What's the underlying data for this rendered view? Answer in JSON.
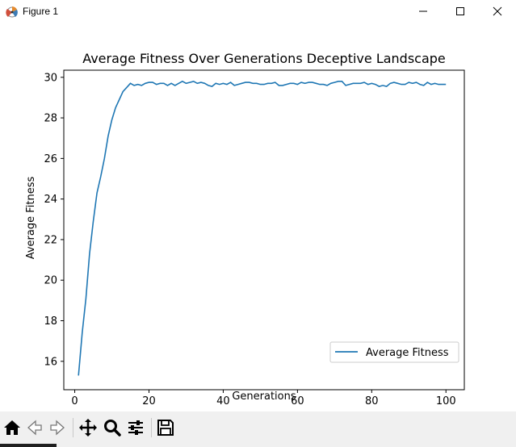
{
  "window": {
    "title": "Figure 1",
    "icons": [
      "matplotlib-icon",
      "minimize-icon",
      "maximize-icon",
      "close-icon"
    ]
  },
  "toolbar": {
    "buttons": [
      {
        "name": "home-button",
        "icon": "home-icon"
      },
      {
        "name": "back-button",
        "icon": "back-arrow-icon"
      },
      {
        "name": "forward-button",
        "icon": "forward-arrow-icon"
      },
      {
        "name": "pan-button",
        "icon": "move-icon"
      },
      {
        "name": "zoom-button",
        "icon": "magnifier-icon"
      },
      {
        "name": "configure-subplots-button",
        "icon": "sliders-icon"
      },
      {
        "name": "save-button",
        "icon": "floppy-disk-icon"
      }
    ]
  },
  "chart_data": {
    "type": "line",
    "title": "Average Fitness Over Generations Deceptive Landscape",
    "xlabel": "Generations",
    "ylabel": "Average Fitness",
    "xlim": [
      -2.95,
      104.95
    ],
    "ylim": [
      14.6,
      30.35
    ],
    "xticks": [
      0,
      20,
      40,
      60,
      80,
      100
    ],
    "yticks": [
      16,
      18,
      20,
      22,
      24,
      26,
      28,
      30
    ],
    "grid": false,
    "legend": "lower right",
    "series": [
      {
        "name": "Average Fitness",
        "color": "#1f77b4",
        "x": [
          1,
          2,
          3,
          4,
          5,
          6,
          7,
          8,
          9,
          10,
          11,
          12,
          13,
          14,
          15,
          16,
          17,
          18,
          19,
          20,
          21,
          22,
          23,
          24,
          25,
          26,
          27,
          28,
          29,
          30,
          31,
          32,
          33,
          34,
          35,
          36,
          37,
          38,
          39,
          40,
          41,
          42,
          43,
          44,
          45,
          46,
          47,
          48,
          49,
          50,
          51,
          52,
          53,
          54,
          55,
          56,
          57,
          58,
          59,
          60,
          61,
          62,
          63,
          64,
          65,
          66,
          67,
          68,
          69,
          70,
          71,
          72,
          73,
          74,
          75,
          76,
          77,
          78,
          79,
          80,
          81,
          82,
          83,
          84,
          85,
          86,
          87,
          88,
          89,
          90,
          91,
          92,
          93,
          94,
          95,
          96,
          97,
          98,
          99,
          100
        ],
        "y": [
          15.3,
          17.4,
          19.1,
          21.3,
          22.9,
          24.3,
          25.1,
          26.0,
          27.1,
          27.9,
          28.5,
          28.9,
          29.3,
          29.5,
          29.7,
          29.6,
          29.65,
          29.6,
          29.7,
          29.75,
          29.75,
          29.65,
          29.7,
          29.7,
          29.6,
          29.7,
          29.6,
          29.7,
          29.8,
          29.7,
          29.75,
          29.8,
          29.7,
          29.75,
          29.7,
          29.6,
          29.55,
          29.7,
          29.65,
          29.7,
          29.65,
          29.75,
          29.6,
          29.65,
          29.7,
          29.75,
          29.75,
          29.7,
          29.7,
          29.65,
          29.65,
          29.7,
          29.7,
          29.75,
          29.6,
          29.6,
          29.65,
          29.7,
          29.7,
          29.65,
          29.75,
          29.7,
          29.75,
          29.75,
          29.7,
          29.65,
          29.65,
          29.6,
          29.7,
          29.75,
          29.8,
          29.8,
          29.6,
          29.65,
          29.7,
          29.7,
          29.7,
          29.75,
          29.65,
          29.7,
          29.65,
          29.55,
          29.6,
          29.55,
          29.7,
          29.75,
          29.7,
          29.65,
          29.65,
          29.75,
          29.7,
          29.75,
          29.65,
          29.6,
          29.75,
          29.65,
          29.7,
          29.65,
          29.65,
          29.65
        ]
      }
    ]
  }
}
